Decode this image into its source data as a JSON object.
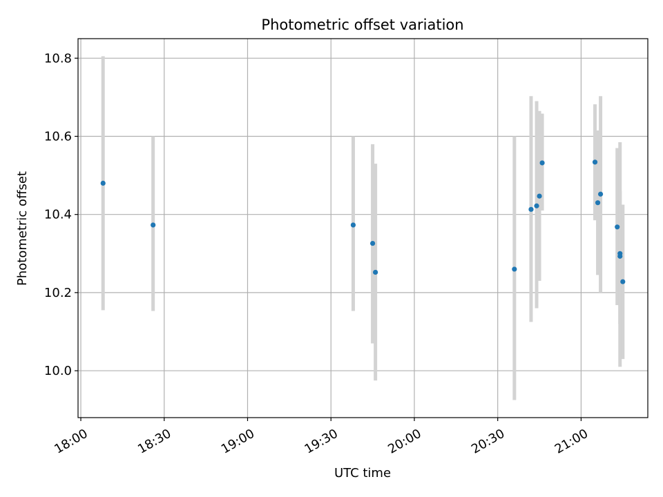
{
  "chart_data": {
    "type": "scatter",
    "title": "Photometric offset variation",
    "xlabel": "UTC time",
    "ylabel": "Photometric offset",
    "x_ticks": [
      "18:00",
      "18:30",
      "19:00",
      "19:30",
      "20:00",
      "20:30",
      "21:00"
    ],
    "y_ticks": [
      "10.0",
      "10.2",
      "10.4",
      "10.6",
      "10.8"
    ],
    "xlim": [
      "17:59",
      "21:24"
    ],
    "ylim": [
      9.88,
      10.85
    ],
    "grid": true,
    "colors": {
      "point": "#1f77b4",
      "errorbar": "#d3d3d3",
      "grid": "#b0b0b0"
    },
    "series": [
      {
        "points": [
          {
            "x": "18:08",
            "y": 10.48,
            "ylow": 10.155,
            "yhigh": 10.805
          },
          {
            "x": "18:26",
            "y": 10.373,
            "ylow": 10.153,
            "yhigh": 10.6
          },
          {
            "x": "19:38",
            "y": 10.373,
            "ylow": 10.153,
            "yhigh": 10.6
          },
          {
            "x": "19:45",
            "y": 10.326,
            "ylow": 10.07,
            "yhigh": 10.58
          },
          {
            "x": "19:46",
            "y": 10.252,
            "ylow": 9.975,
            "yhigh": 10.53
          },
          {
            "x": "20:36",
            "y": 10.26,
            "ylow": 9.925,
            "yhigh": 10.6
          },
          {
            "x": "20:42",
            "y": 10.413,
            "ylow": 10.125,
            "yhigh": 10.703
          },
          {
            "x": "20:44",
            "y": 10.422,
            "ylow": 10.16,
            "yhigh": 10.69
          },
          {
            "x": "20:45",
            "y": 10.447,
            "ylow": 10.23,
            "yhigh": 10.665
          },
          {
            "x": "20:46",
            "y": 10.532,
            "ylow": 10.41,
            "yhigh": 10.658
          },
          {
            "x": "21:05",
            "y": 10.534,
            "ylow": 10.385,
            "yhigh": 10.682
          },
          {
            "x": "21:06",
            "y": 10.43,
            "ylow": 10.245,
            "yhigh": 10.615
          },
          {
            "x": "21:07",
            "y": 10.452,
            "ylow": 10.2,
            "yhigh": 10.703
          },
          {
            "x": "21:13",
            "y": 10.368,
            "ylow": 10.168,
            "yhigh": 10.57
          },
          {
            "x": "21:14",
            "y": 10.3,
            "ylow": 10.01,
            "yhigh": 10.585
          },
          {
            "x": "21:14",
            "y": 10.293,
            "ylow": 10.12,
            "yhigh": 10.46
          },
          {
            "x": "21:15",
            "y": 10.228,
            "ylow": 10.03,
            "yhigh": 10.425
          }
        ]
      }
    ]
  }
}
